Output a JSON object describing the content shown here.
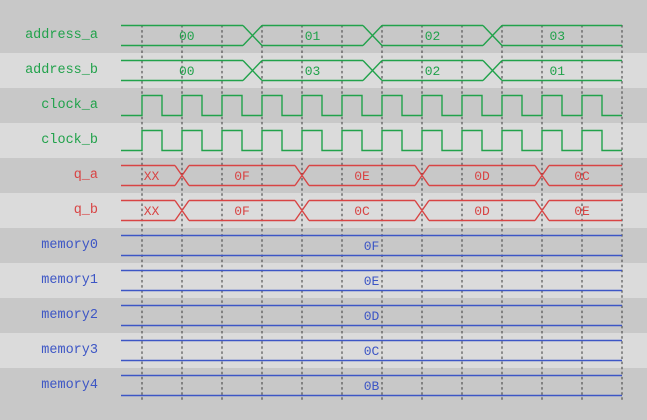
{
  "colors": {
    "signal_green": "#21A24B",
    "signal_red": "#D84444",
    "signal_blue": "#3D56C5",
    "row_dark": "#C8C8C8",
    "row_light": "#DBDBDB",
    "gridline": "#3A3A3A"
  },
  "signals": [
    {
      "label": "address_a",
      "color": "signal_green",
      "kind": "bus",
      "values": [
        "00",
        "01",
        "02",
        "03"
      ],
      "transitions": [
        252.5,
        372.5,
        492.5
      ],
      "xw": 9.5
    },
    {
      "label": "address_b",
      "color": "signal_green",
      "kind": "bus",
      "values": [
        "00",
        "03",
        "02",
        "01"
      ],
      "transitions": [
        252.5,
        372.5,
        492.5
      ],
      "xw": 9.5
    },
    {
      "label": "clock_a",
      "color": "signal_green",
      "kind": "clock",
      "first_rise": 142,
      "half_period": 20
    },
    {
      "label": "clock_b",
      "color": "signal_green",
      "kind": "clock",
      "first_rise": 142,
      "half_period": 20
    },
    {
      "label": "q_a",
      "color": "signal_red",
      "kind": "bus",
      "values": [
        "XX",
        "0F",
        "0E",
        "0D",
        "0C"
      ],
      "transitions": [
        182,
        302,
        422,
        542
      ],
      "xw": 7
    },
    {
      "label": "q_b",
      "color": "signal_red",
      "kind": "bus",
      "values": [
        "XX",
        "0F",
        "0C",
        "0D",
        "0E"
      ],
      "transitions": [
        182,
        302,
        422,
        542
      ],
      "xw": 7
    },
    {
      "label": "memory0",
      "color": "signal_blue",
      "kind": "bus",
      "values": [
        "0F"
      ],
      "transitions": [],
      "xw": 0
    },
    {
      "label": "memory1",
      "color": "signal_blue",
      "kind": "bus",
      "values": [
        "0E"
      ],
      "transitions": [],
      "xw": 0
    },
    {
      "label": "memory2",
      "color": "signal_blue",
      "kind": "bus",
      "values": [
        "0D"
      ],
      "transitions": [],
      "xw": 0
    },
    {
      "label": "memory3",
      "color": "signal_blue",
      "kind": "bus",
      "values": [
        "0C"
      ],
      "transitions": [],
      "xw": 0
    },
    {
      "label": "memory4",
      "color": "signal_blue",
      "kind": "bus",
      "values": [
        "0B"
      ],
      "transitions": [],
      "xw": 0
    }
  ]
}
